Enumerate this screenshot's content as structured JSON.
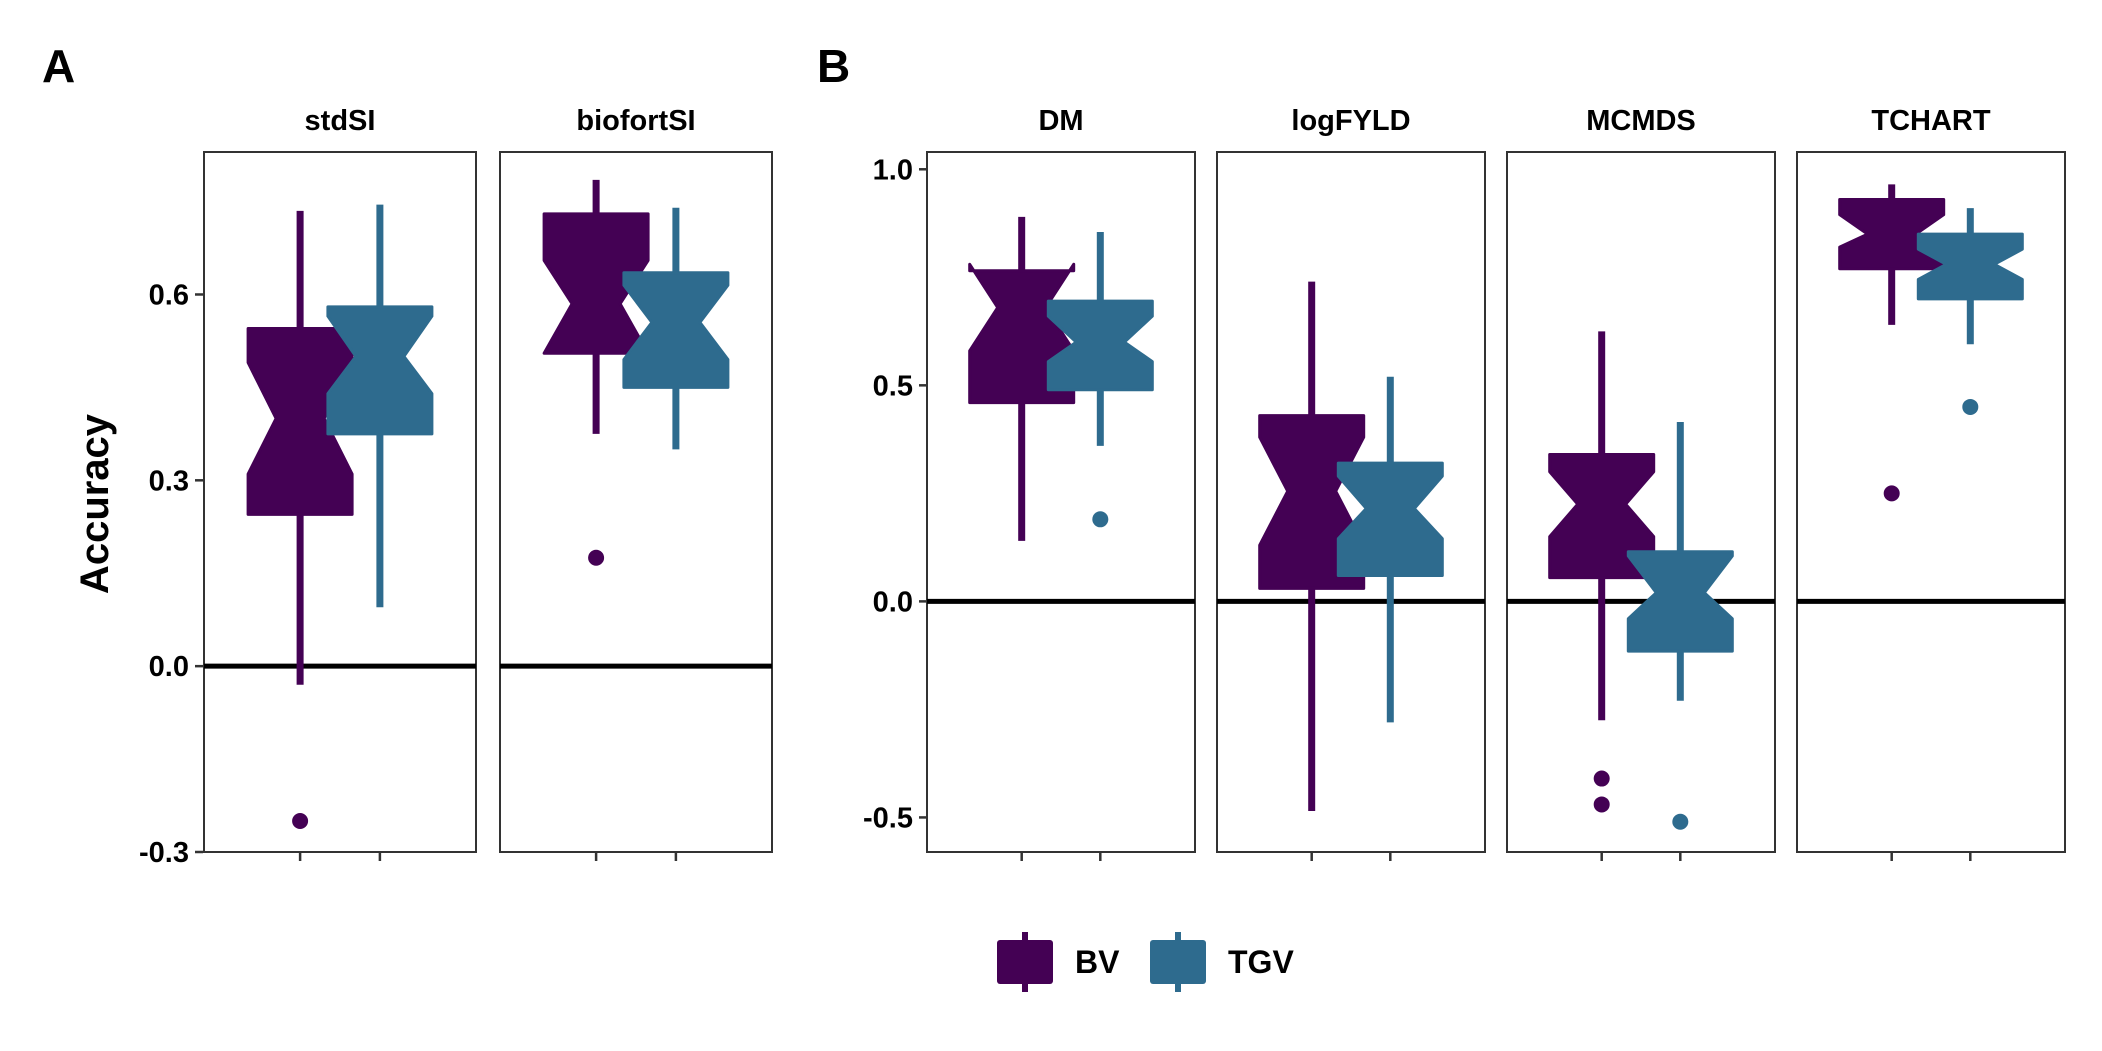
{
  "figure": {
    "panel_letters": [
      "A",
      "B"
    ],
    "legend": [
      {
        "key": "BV",
        "label": "BV",
        "color": "#440154"
      },
      {
        "key": "TGV",
        "label": "TGV",
        "color": "#2E6B8E"
      }
    ]
  },
  "chart_data": [
    {
      "type": "boxplot",
      "notched": true,
      "panel": "A",
      "ylabel": "Accuracy",
      "xlabel": "",
      "ylim": [
        -0.3,
        0.83
      ],
      "y_ticks": [
        -0.3,
        0.0,
        0.3,
        0.6
      ],
      "y_tick_labels": [
        "-0.3",
        "0.0",
        "0.3",
        "0.6"
      ],
      "reference_line_y": 0.0,
      "facets": [
        {
          "name": "stdSI",
          "boxes": [
            {
              "group": "BV",
              "q1": 0.245,
              "median": 0.4,
              "q3": 0.545,
              "notch_low": 0.31,
              "notch_high": 0.49,
              "whisker_low": -0.03,
              "whisker_high": 0.735,
              "outliers": [
                -0.25
              ]
            },
            {
              "group": "TGV",
              "q1": 0.375,
              "median": 0.5,
              "q3": 0.58,
              "notch_low": 0.44,
              "notch_high": 0.565,
              "whisker_low": 0.095,
              "whisker_high": 0.745,
              "outliers": []
            }
          ]
        },
        {
          "name": "biofortSI",
          "boxes": [
            {
              "group": "BV",
              "q1": 0.505,
              "median": 0.585,
              "q3": 0.73,
              "notch_low": 0.505,
              "notch_high": 0.655,
              "whisker_low": 0.375,
              "whisker_high": 0.785,
              "outliers": [
                0.175
              ]
            },
            {
              "group": "TGV",
              "q1": 0.45,
              "median": 0.555,
              "q3": 0.635,
              "notch_low": 0.495,
              "notch_high": 0.615,
              "whisker_low": 0.35,
              "whisker_high": 0.74,
              "outliers": []
            }
          ]
        }
      ]
    },
    {
      "type": "boxplot",
      "notched": true,
      "panel": "B",
      "ylabel": "",
      "xlabel": "",
      "ylim": [
        -0.58,
        1.04
      ],
      "y_ticks": [
        -0.5,
        0.0,
        0.5,
        1.0
      ],
      "y_tick_labels": [
        "-0.5",
        "0.0",
        "0.5",
        "1.0"
      ],
      "reference_line_y": 0.0,
      "facets": [
        {
          "name": "DM",
          "boxes": [
            {
              "group": "BV",
              "q1": 0.46,
              "median": 0.68,
              "q3": 0.765,
              "notch_low": 0.58,
              "notch_high": 0.78,
              "whisker_low": 0.14,
              "whisker_high": 0.89,
              "outliers": []
            },
            {
              "group": "TGV",
              "q1": 0.49,
              "median": 0.6,
              "q3": 0.695,
              "notch_low": 0.555,
              "notch_high": 0.66,
              "whisker_low": 0.36,
              "whisker_high": 0.855,
              "outliers": [
                0.19
              ]
            }
          ]
        },
        {
          "name": "logFYLD",
          "boxes": [
            {
              "group": "BV",
              "q1": 0.03,
              "median": 0.255,
              "q3": 0.43,
              "notch_low": 0.13,
              "notch_high": 0.38,
              "whisker_low": -0.485,
              "whisker_high": 0.74,
              "outliers": []
            },
            {
              "group": "TGV",
              "q1": 0.06,
              "median": 0.215,
              "q3": 0.32,
              "notch_low": 0.145,
              "notch_high": 0.29,
              "whisker_low": -0.28,
              "whisker_high": 0.52,
              "outliers": []
            }
          ]
        },
        {
          "name": "MCMDS",
          "boxes": [
            {
              "group": "BV",
              "q1": 0.055,
              "median": 0.225,
              "q3": 0.34,
              "notch_low": 0.15,
              "notch_high": 0.3,
              "whisker_low": -0.275,
              "whisker_high": 0.625,
              "outliers": [
                -0.41,
                -0.47
              ]
            },
            {
              "group": "TGV",
              "q1": -0.115,
              "median": 0.02,
              "q3": 0.115,
              "notch_low": -0.04,
              "notch_high": 0.105,
              "whisker_low": -0.23,
              "whisker_high": 0.415,
              "outliers": [
                -0.51
              ]
            }
          ]
        },
        {
          "name": "TCHART",
          "boxes": [
            {
              "group": "BV",
              "q1": 0.77,
              "median": 0.85,
              "q3": 0.93,
              "notch_low": 0.82,
              "notch_high": 0.895,
              "whisker_low": 0.64,
              "whisker_high": 0.965,
              "outliers": [
                0.25
              ]
            },
            {
              "group": "TGV",
              "q1": 0.7,
              "median": 0.78,
              "q3": 0.85,
              "notch_low": 0.745,
              "notch_high": 0.815,
              "whisker_low": 0.595,
              "whisker_high": 0.91,
              "outliers": [
                0.45
              ]
            }
          ]
        }
      ]
    }
  ]
}
